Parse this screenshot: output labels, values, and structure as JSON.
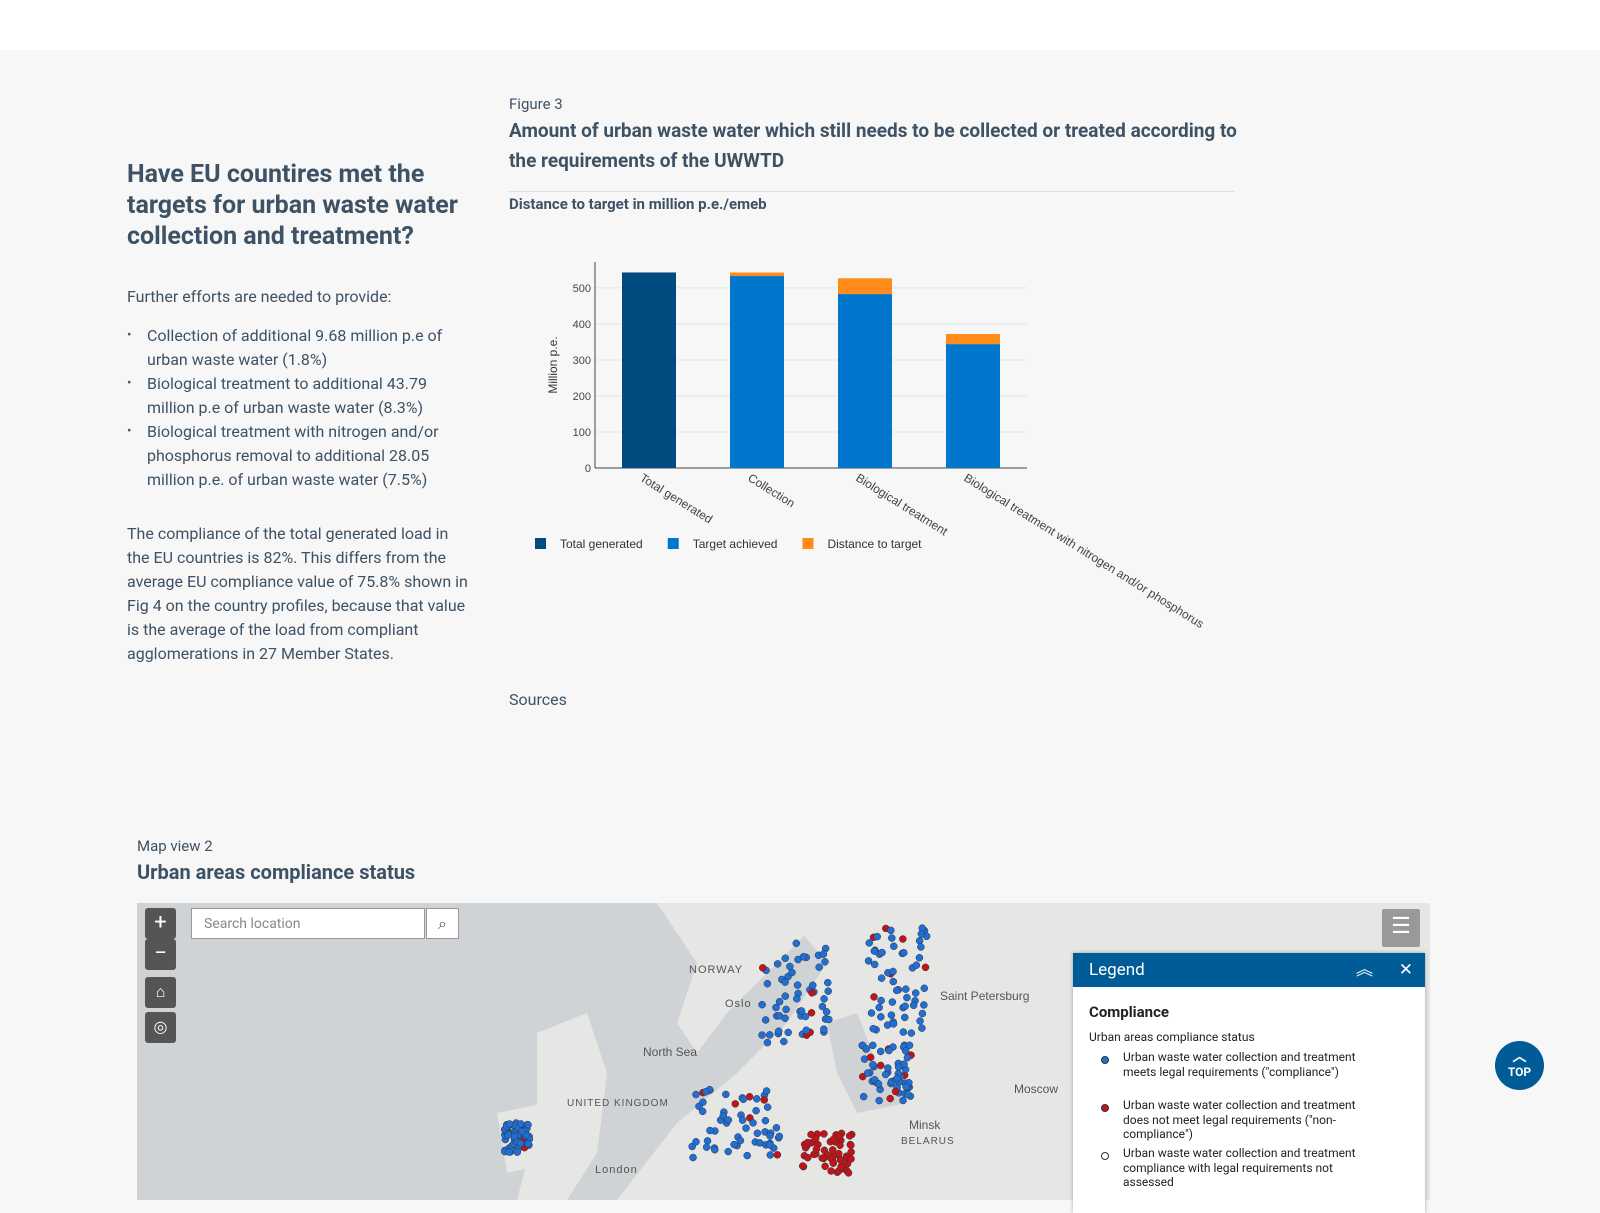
{
  "intro": {
    "title": "Have EU countires met the targets for urban waste water collection and treatment?",
    "lead": "Further efforts are needed to provide:",
    "bullets": [
      "Collection of additional 9.68 million p.e of urban waste water (1.8%)",
      "Biological treatment to additional 43.79 million p.e of urban waste water (8.3%)",
      "Biological treatment with nitrogen and/or phosphorus removal to additional 28.05 million p.e. of urban waste water (7.5%)"
    ],
    "paragraph": "The compliance of the total generated load in the EU countries is 82%. This differs from the average EU compliance value of 75.8% shown in Fig 4 on the country profiles, because that value is the average of the load from compliant agglomerations in 27 Member States."
  },
  "figure": {
    "label": "Figure 3",
    "title": "Amount of urban waste water which still needs to be collected or treated according to the requirements of the UWWTD",
    "subtitle": "Distance to target in million p.e./emeb",
    "sources": "Sources"
  },
  "chart_data": {
    "type": "stacked_bar",
    "y_label": "Million p.e.",
    "categories": [
      "Total generated",
      "Collection",
      "Biological treatment",
      "Biological treatment with nitrogen and/or phosphorus"
    ],
    "series": [
      {
        "name": "Total generated",
        "color": "#004b7f",
        "values": [
          543,
          null,
          null,
          null
        ]
      },
      {
        "name": "Target achieved",
        "color": "#0077cc",
        "values": [
          null,
          533,
          483,
          344
        ]
      },
      {
        "name": "Distance to target",
        "color": "#ff8c1a",
        "values": [
          null,
          9.68,
          43.79,
          28.05
        ]
      }
    ],
    "ylim": [
      0,
      572
    ],
    "yticks": [
      0,
      100,
      200,
      300,
      400,
      500
    ],
    "grid": true
  },
  "map": {
    "label": "Map view 2",
    "title": "Urban areas compliance status",
    "search_placeholder": "Search location",
    "places": [
      "NORWAY",
      "Oslo",
      "North Sea",
      "UNITED KINGDOM",
      "London",
      "Saint Petersburg",
      "Moscow",
      "Minsk",
      "BELARUS"
    ],
    "legend": {
      "title": "Legend",
      "section": "Compliance",
      "layer": "Urban areas compliance status",
      "items": [
        {
          "label": "Urban waste water collection and treatment meets legal requirements (\"compliance\")",
          "color": "#1f6fd6"
        },
        {
          "label": "Urban waste water collection and treatment does not meet legal requirements (\"non-compliance\")",
          "color": "#c0141a"
        },
        {
          "label": "Urban waste water collection and treatment compliance with legal requirements not assessed",
          "color": "#ffffff"
        }
      ]
    }
  },
  "top_button": "TOP"
}
